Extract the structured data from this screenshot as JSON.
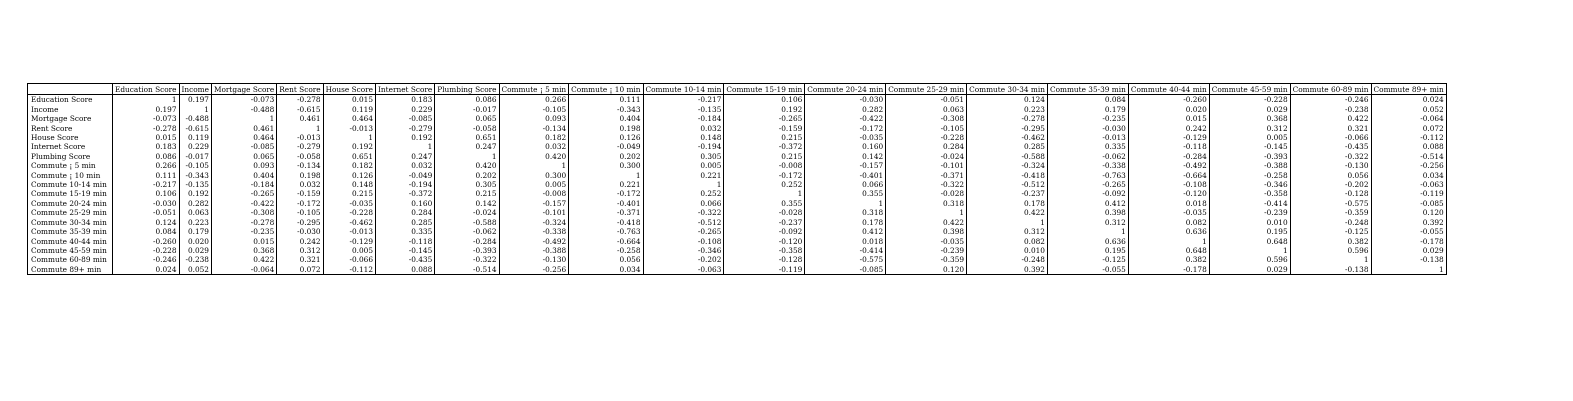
{
  "table": {
    "corner": "",
    "columns": [
      "Education Score",
      "Income",
      "Mortgage Score",
      "Rent Score",
      "House Score",
      "Internet Score",
      "Plumbing Score",
      "Commute ¡ 5 min",
      "Commute ¡ 10 min",
      "Commute 10-14 min",
      "Commute 15-19 min",
      "Commute 20-24 min",
      "Commute 25-29 min",
      "Commute 30-34 min",
      "Commute 35-39 min",
      "Commute 40-44 min",
      "Commute 45-59 min",
      "Commute 60-89 min",
      "Commute 89+ min"
    ],
    "rows": [
      {
        "label": "Education Score",
        "values": [
          "1",
          "0.197",
          "-0.073",
          "-0.278",
          "0.015",
          "0.183",
          "0.086",
          "0.266",
          "0.111",
          "-0.217",
          "0.106",
          "-0.030",
          "-0.051",
          "0.124",
          "0.084",
          "-0.260",
          "-0.228",
          "-0.246",
          "0.024"
        ]
      },
      {
        "label": "Income",
        "values": [
          "0.197",
          "1",
          "-0.488",
          "-0.615",
          "0.119",
          "0.229",
          "-0.017",
          "-0.105",
          "-0.343",
          "-0.135",
          "0.192",
          "0.282",
          "0.063",
          "0.223",
          "0.179",
          "0.020",
          "0.029",
          "-0.238",
          "0.052"
        ]
      },
      {
        "label": "Mortgage Score",
        "values": [
          "-0.073",
          "-0.488",
          "1",
          "0.461",
          "0.464",
          "-0.085",
          "0.065",
          "0.093",
          "0.404",
          "-0.184",
          "-0.265",
          "-0.422",
          "-0.308",
          "-0.278",
          "-0.235",
          "0.015",
          "0.368",
          "0.422",
          "-0.064"
        ]
      },
      {
        "label": "Rent Score",
        "values": [
          "-0.278",
          "-0.615",
          "0.461",
          "1",
          "-0.013",
          "-0.279",
          "-0.058",
          "-0.134",
          "0.198",
          "0.032",
          "-0.159",
          "-0.172",
          "-0.105",
          "-0.295",
          "-0.030",
          "0.242",
          "0.312",
          "0.321",
          "0.072"
        ]
      },
      {
        "label": "House Score",
        "values": [
          "0.015",
          "0.119",
          "0.464",
          "-0.013",
          "1",
          "0.192",
          "0.651",
          "0.182",
          "0.126",
          "0.148",
          "0.215",
          "-0.035",
          "-0.228",
          "-0.462",
          "-0.013",
          "-0.129",
          "0.005",
          "-0.066",
          "-0.112"
        ]
      },
      {
        "label": "Internet Score",
        "values": [
          "0.183",
          "0.229",
          "-0.085",
          "-0.279",
          "0.192",
          "1",
          "0.247",
          "0.032",
          "-0.049",
          "-0.194",
          "-0.372",
          "0.160",
          "0.284",
          "0.285",
          "0.335",
          "-0.118",
          "-0.145",
          "-0.435",
          "0.088"
        ]
      },
      {
        "label": "Plumbing Score",
        "values": [
          "0.086",
          "-0.017",
          "0.065",
          "-0.058",
          "0.651",
          "0.247",
          "1",
          "0.420",
          "0.202",
          "0.305",
          "0.215",
          "0.142",
          "-0.024",
          "-0.588",
          "-0.062",
          "-0.284",
          "-0.393",
          "-0.322",
          "-0.514"
        ]
      },
      {
        "label": "Commute ¡ 5 min",
        "values": [
          "0.266",
          "-0.105",
          "0.093",
          "-0.134",
          "0.182",
          "0.032",
          "0.420",
          "1",
          "0.300",
          "0.005",
          "-0.008",
          "-0.157",
          "-0.101",
          "-0.324",
          "-0.338",
          "-0.492",
          "-0.388",
          "-0.130",
          "-0.256"
        ]
      },
      {
        "label": "Commute ¡ 10 min",
        "values": [
          "0.111",
          "-0.343",
          "0.404",
          "0.198",
          "0.126",
          "-0.049",
          "0.202",
          "0.300",
          "1",
          "0.221",
          "-0.172",
          "-0.401",
          "-0.371",
          "-0.418",
          "-0.763",
          "-0.664",
          "-0.258",
          "0.056",
          "0.034"
        ]
      },
      {
        "label": "Commute 10-14 min",
        "values": [
          "-0.217",
          "-0.135",
          "-0.184",
          "0.032",
          "0.148",
          "-0.194",
          "0.305",
          "0.005",
          "0.221",
          "1",
          "0.252",
          "0.066",
          "-0.322",
          "-0.512",
          "-0.265",
          "-0.108",
          "-0.346",
          "-0.202",
          "-0.063"
        ]
      },
      {
        "label": "Commute 15-19 min",
        "values": [
          "0.106",
          "0.192",
          "-0.265",
          "-0.159",
          "0.215",
          "-0.372",
          "0.215",
          "-0.008",
          "-0.172",
          "0.252",
          "1",
          "0.355",
          "-0.028",
          "-0.237",
          "-0.092",
          "-0.120",
          "-0.358",
          "-0.128",
          "-0.119"
        ]
      },
      {
        "label": "Commute 20-24 min",
        "values": [
          "-0.030",
          "0.282",
          "-0.422",
          "-0.172",
          "-0.035",
          "0.160",
          "0.142",
          "-0.157",
          "-0.401",
          "0.066",
          "0.355",
          "1",
          "0.318",
          "0.178",
          "0.412",
          "0.018",
          "-0.414",
          "-0.575",
          "-0.085"
        ]
      },
      {
        "label": "Commute 25-29 min",
        "values": [
          "-0.051",
          "0.063",
          "-0.308",
          "-0.105",
          "-0.228",
          "0.284",
          "-0.024",
          "-0.101",
          "-0.371",
          "-0.322",
          "-0.028",
          "0.318",
          "1",
          "0.422",
          "0.398",
          "-0.035",
          "-0.239",
          "-0.359",
          "0.120"
        ]
      },
      {
        "label": "Commute 30-34 min",
        "values": [
          "0.124",
          "0.223",
          "-0.278",
          "-0.295",
          "-0.462",
          "0.285",
          "-0.588",
          "-0.324",
          "-0.418",
          "-0.512",
          "-0.237",
          "0.178",
          "0.422",
          "1",
          "0.312",
          "0.082",
          "0.010",
          "-0.248",
          "0.392"
        ]
      },
      {
        "label": "Commute 35-39 min",
        "values": [
          "0.084",
          "0.179",
          "-0.235",
          "-0.030",
          "-0.013",
          "0.335",
          "-0.062",
          "-0.338",
          "-0.763",
          "-0.265",
          "-0.092",
          "0.412",
          "0.398",
          "0.312",
          "1",
          "0.636",
          "0.195",
          "-0.125",
          "-0.055"
        ]
      },
      {
        "label": "Commute 40-44 min",
        "values": [
          "-0.260",
          "0.020",
          "0.015",
          "0.242",
          "-0.129",
          "-0.118",
          "-0.284",
          "-0.492",
          "-0.664",
          "-0.108",
          "-0.120",
          "0.018",
          "-0.035",
          "0.082",
          "0.636",
          "1",
          "0.648",
          "0.382",
          "-0.178"
        ]
      },
      {
        "label": "Commute 45-59 min",
        "values": [
          "-0.228",
          "0.029",
          "0.368",
          "0.312",
          "0.005",
          "-0.145",
          "-0.393",
          "-0.388",
          "-0.258",
          "-0.346",
          "-0.358",
          "-0.414",
          "-0.239",
          "0.010",
          "0.195",
          "0.648",
          "1",
          "0.596",
          "0.029"
        ]
      },
      {
        "label": "Commute 60-89 min",
        "values": [
          "-0.246",
          "-0.238",
          "0.422",
          "0.321",
          "-0.066",
          "-0.435",
          "-0.322",
          "-0.130",
          "0.056",
          "-0.202",
          "-0.128",
          "-0.575",
          "-0.359",
          "-0.248",
          "-0.125",
          "0.382",
          "0.596",
          "1",
          "-0.138"
        ]
      },
      {
        "label": "Commute 89+ min",
        "values": [
          "0.024",
          "0.052",
          "-0.064",
          "0.072",
          "-0.112",
          "0.088",
          "-0.514",
          "-0.256",
          "0.034",
          "-0.063",
          "-0.119",
          "-0.085",
          "0.120",
          "0.392",
          "-0.055",
          "-0.178",
          "0.029",
          "-0.138",
          "1"
        ]
      }
    ]
  }
}
